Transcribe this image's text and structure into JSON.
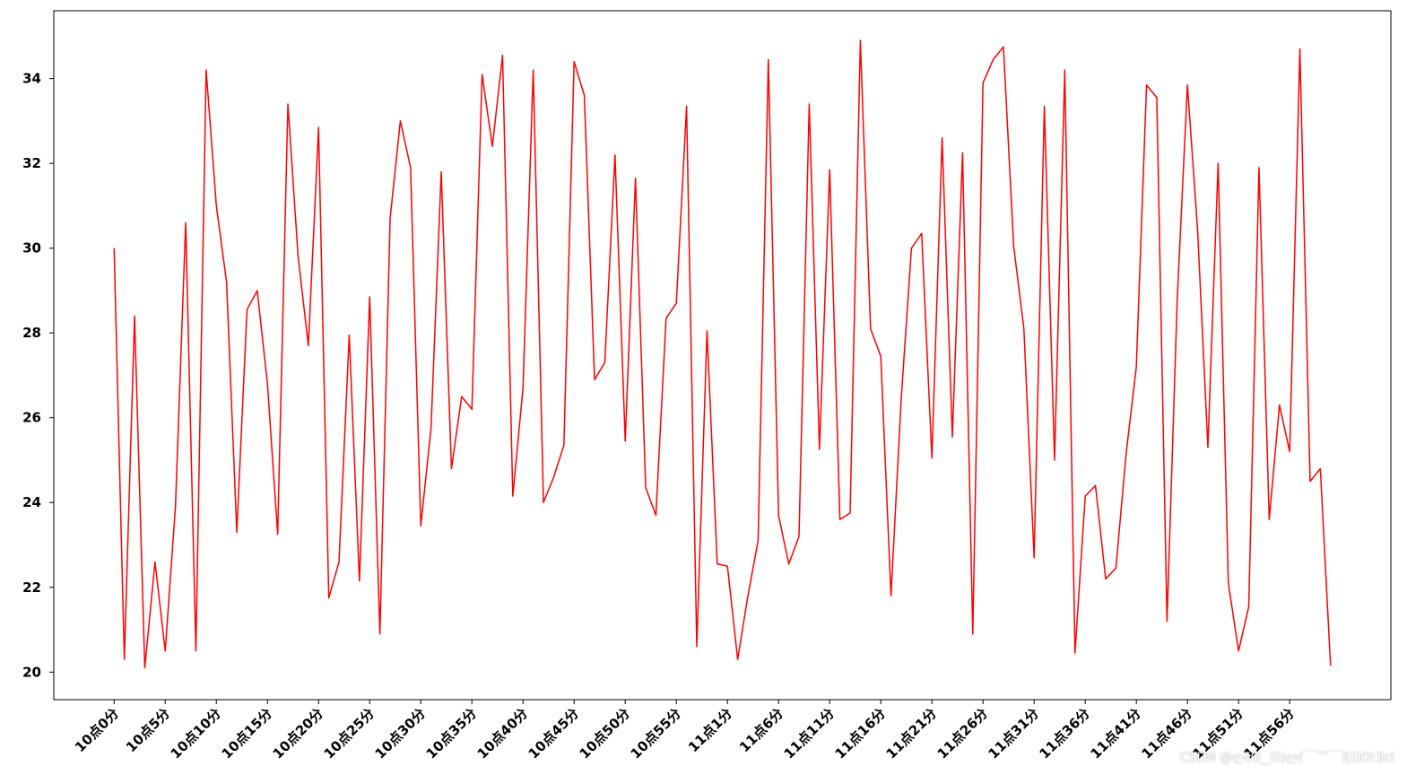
{
  "chart_data": {
    "type": "line",
    "title": "",
    "xlabel": "",
    "ylabel": "",
    "ylim": [
      19.35,
      35.6
    ],
    "xlim": [
      -5.9,
      124.9
    ],
    "grid": false,
    "line_color": "#ff0000",
    "yticks": [
      20,
      22,
      24,
      26,
      28,
      30,
      32,
      34
    ],
    "xtick_positions": [
      0,
      5,
      10,
      15,
      20,
      25,
      30,
      35,
      40,
      45,
      50,
      55,
      60,
      65,
      70,
      75,
      80,
      85,
      90,
      95,
      100,
      105,
      110,
      115
    ],
    "xtick_labels": [
      "10点0分",
      "10点5分",
      "10点10分",
      "10点15分",
      "10点20分",
      "10点25分",
      "10点30分",
      "10点35分",
      "10点40分",
      "10点45分",
      "10点50分",
      "10点55分",
      "11点1分",
      "11点6分",
      "11点11分",
      "11点16分",
      "11点21分",
      "11点26分",
      "11点31分",
      "11点36分",
      "11点41分",
      "11点46分",
      "11点51分",
      "11点56分"
    ],
    "series": [
      {
        "values": [
          30.0,
          20.3,
          28.4,
          20.1,
          22.6,
          20.5,
          23.9,
          30.6,
          20.5,
          34.2,
          31.0,
          29.2,
          23.3,
          28.55,
          29.0,
          26.8,
          23.25,
          33.4,
          29.8,
          27.7,
          32.85,
          21.75,
          22.6,
          27.95,
          22.15,
          28.85,
          20.9,
          30.7,
          33.0,
          31.9,
          23.45,
          25.75,
          31.8,
          24.8,
          26.5,
          26.2,
          34.1,
          32.4,
          34.55,
          24.15,
          26.7,
          34.2,
          24.0,
          24.6,
          25.35,
          34.4,
          33.6,
          26.9,
          27.3,
          32.2,
          25.45,
          31.65,
          24.35,
          23.7,
          28.35,
          28.7,
          33.35,
          20.6,
          28.05,
          22.55,
          22.5,
          20.3,
          21.8,
          23.1,
          34.45,
          23.7,
          22.55,
          23.2,
          33.4,
          25.25,
          31.85,
          23.6,
          23.75,
          34.9,
          28.1,
          27.45,
          21.8,
          26.45,
          30.0,
          30.35,
          25.05,
          32.6,
          25.55,
          32.25,
          20.9,
          33.9,
          34.45,
          34.75,
          30.05,
          28.1,
          22.7,
          33.35,
          25.0,
          34.2,
          20.45,
          24.15,
          24.4,
          22.2,
          22.45,
          25.15,
          27.2,
          33.85,
          33.55,
          21.2,
          28.8,
          33.85,
          30.4,
          25.3,
          32.0,
          22.1,
          20.5,
          21.55,
          31.9,
          23.6,
          26.3,
          25.2,
          34.7,
          24.5,
          24.8,
          20.15
        ]
      }
    ]
  },
  "watermark": "CSDN @ლ(ʘ‿ʘ)ლ(￣︶￣)[GO!]lcl"
}
